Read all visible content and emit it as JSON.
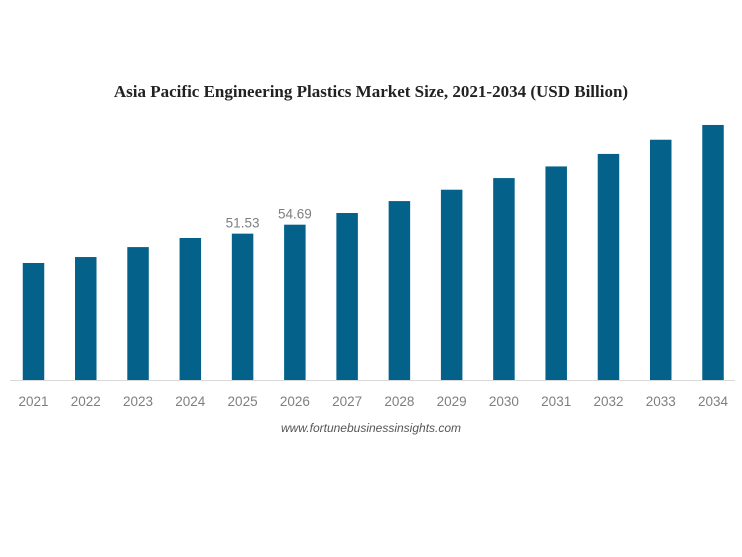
{
  "chart_data": {
    "type": "bar",
    "title": "Asia Pacific Engineering Plastics Market Size, 2021-2034 (USD Billion)",
    "xlabel": "",
    "ylabel": "",
    "categories": [
      "2021",
      "2022",
      "2023",
      "2024",
      "2025",
      "2026",
      "2027",
      "2028",
      "2029",
      "2030",
      "2031",
      "2032",
      "2033",
      "2034"
    ],
    "values": [
      41.2,
      43.3,
      46.8,
      50.0,
      51.53,
      54.69,
      58.8,
      63.0,
      67.0,
      71.1,
      75.2,
      79.6,
      84.6,
      89.8
    ],
    "data_labels": {
      "2025": "51.53",
      "2026": "54.69"
    },
    "ylim": [
      0,
      90
    ],
    "grid": false,
    "bar_color": "#04628a",
    "source": "www.fortunebusinessinsights.com"
  }
}
